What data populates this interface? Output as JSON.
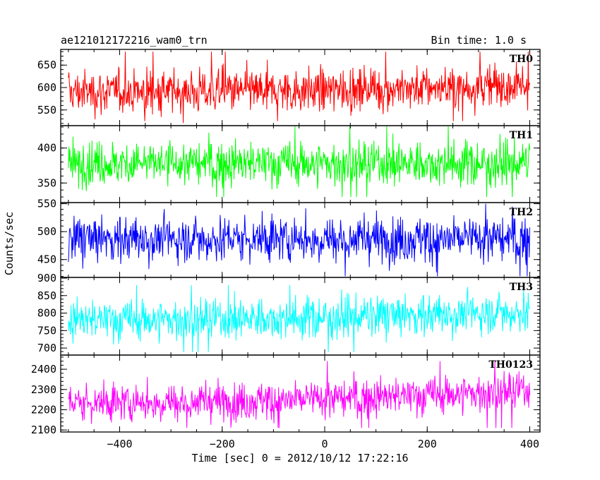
{
  "header": {
    "title": "ae121012172216_wam0_trn",
    "bin_time": "Bin time: 1.0 s"
  },
  "axes": {
    "xlabel": "Time [sec] 0 = 2012/10/12 17:22:16",
    "ylabel": "Counts/sec",
    "xlim": [
      -515,
      420
    ],
    "xticks": [
      -400,
      -200,
      0,
      200,
      400
    ],
    "xtick_labels": [
      "−400",
      "−200",
      "0",
      "200",
      "400"
    ]
  },
  "chart_data": {
    "type": "line",
    "x_range": [
      -500,
      400
    ],
    "bin_time_s": 1.0,
    "grid": false,
    "panels": [
      {
        "name": "TH0",
        "color": "#ff0000",
        "ylim": [
          515,
          685
        ],
        "yticks": [
          550,
          600,
          650
        ],
        "mean": 590,
        "spread": 24,
        "trend": 15,
        "extreme": [
          680,
          525
        ]
      },
      {
        "name": "TH1",
        "color": "#00ff00",
        "ylim": [
          322,
          432
        ],
        "yticks": [
          350,
          400
        ],
        "mean": 378,
        "spread": 16,
        "trend": 0,
        "extreme": [
          432,
          330
        ]
      },
      {
        "name": "TH2",
        "color": "#0000ff",
        "ylim": [
          418,
          552
        ],
        "yticks": [
          450,
          500,
          550
        ],
        "mean": 487,
        "spread": 21,
        "trend": 0,
        "extreme": [
          550,
          420
        ]
      },
      {
        "name": "TH3",
        "color": "#00ffff",
        "ylim": [
          680,
          902
        ],
        "yticks": [
          700,
          750,
          800,
          850,
          900
        ],
        "mean": 780,
        "spread": 30,
        "trend": 25,
        "extreme": [
          880,
          688
        ]
      },
      {
        "name": "TH0123",
        "color": "#ff00ff",
        "ylim": [
          2090,
          2470
        ],
        "yticks": [
          2100,
          2200,
          2300,
          2400
        ],
        "mean": 2235,
        "spread": 48,
        "trend": 60,
        "extreme": [
          2440,
          2110
        ]
      }
    ]
  }
}
